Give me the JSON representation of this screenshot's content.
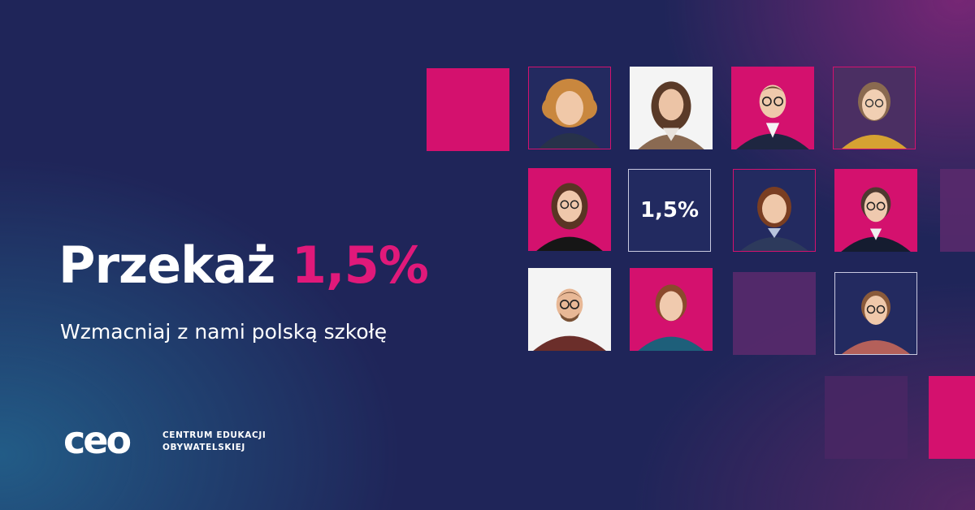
{
  "headline": {
    "text": "Przekaż",
    "accent": "1,5%"
  },
  "subhead": "Wzmacniaj z nami polską szkołę",
  "stat_tile": "1,5%",
  "logo": {
    "mark": "ceo",
    "line1": "CENTRUM EDUKACJI",
    "line2": "OBYWATELSKIEJ"
  },
  "colors": {
    "background": "#1f2559",
    "accent": "#e0197a",
    "tile_pink": "#d4116e",
    "tile_purple": "#5c2a6d"
  }
}
